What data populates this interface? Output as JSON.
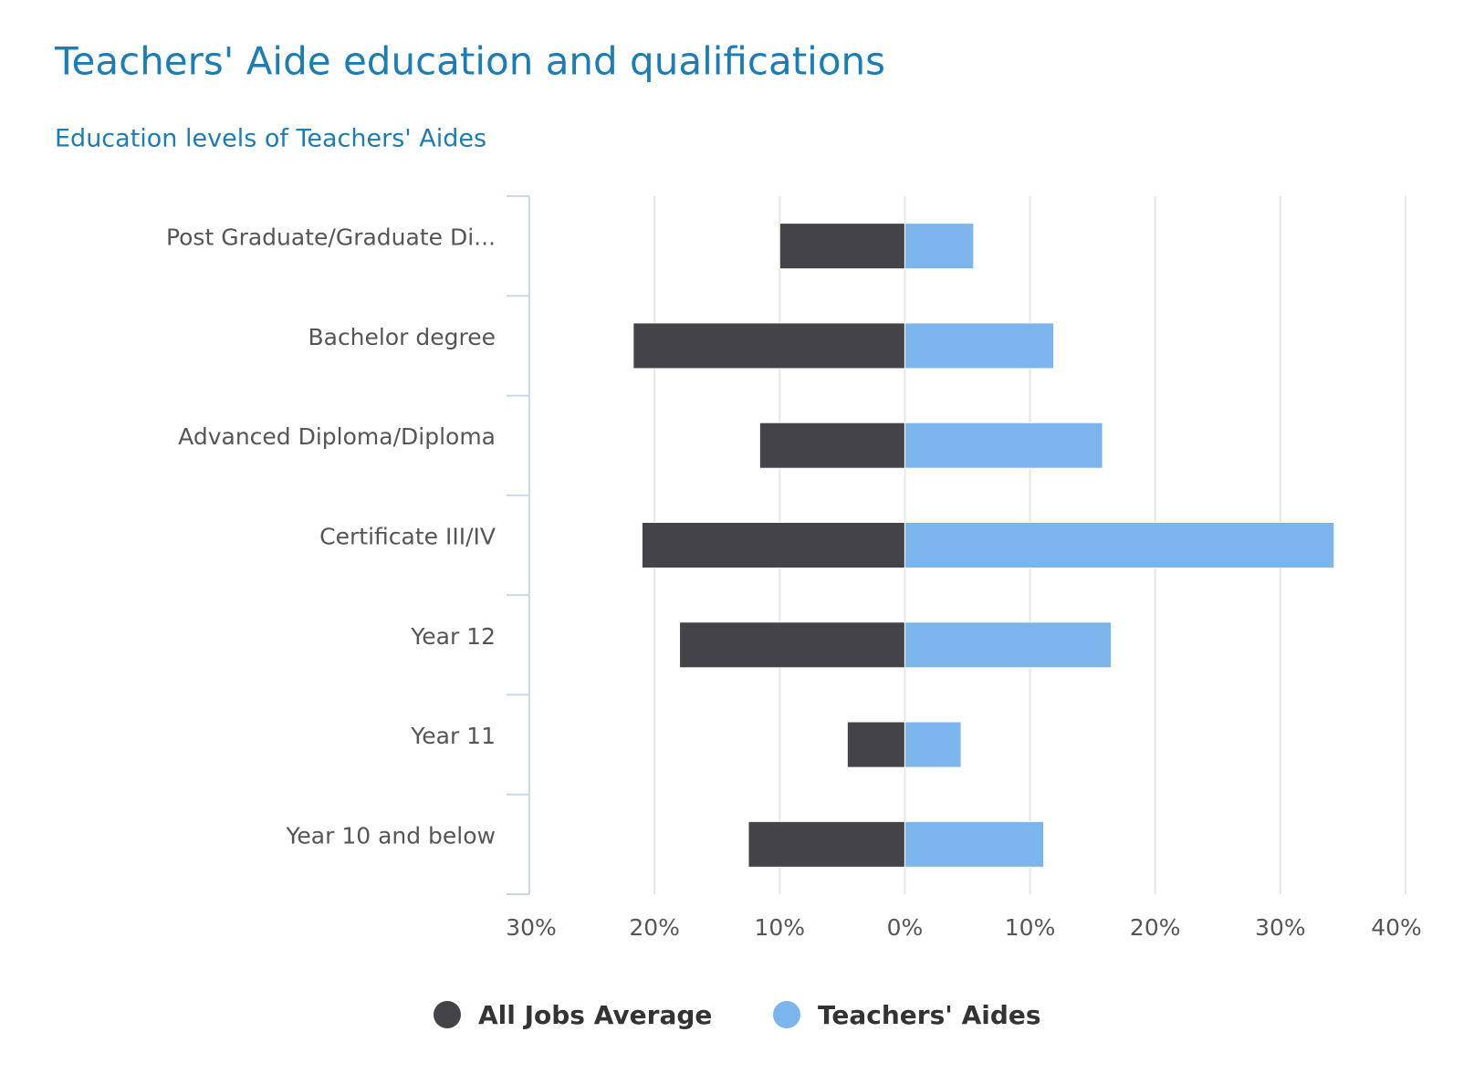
{
  "chart_data": {
    "type": "bar",
    "orientation": "horizontal",
    "title": "Teachers' Aide education and qualifications",
    "subtitle": "Education levels of Teachers' Aides",
    "categories": [
      "Post Graduate/Graduate Di...",
      "Bachelor degree",
      "Advanced Diploma/Diploma",
      "Certificate III/IV",
      "Year 12",
      "Year 11",
      "Year 10 and below"
    ],
    "series": [
      {
        "name": "All Jobs Average",
        "color": "#434348",
        "values": [
          -10.0,
          -21.7,
          -11.6,
          -21.0,
          -18.0,
          -4.6,
          -12.5
        ]
      },
      {
        "name": "Teachers' Aides",
        "color": "#7cb5ec",
        "values": [
          5.5,
          11.9,
          15.8,
          34.3,
          16.5,
          4.5,
          11.1
        ]
      }
    ],
    "xlim": [
      -30,
      40
    ],
    "xticks": [
      {
        "value": -30,
        "label": "30%"
      },
      {
        "value": -20,
        "label": "20%"
      },
      {
        "value": -10,
        "label": "10%"
      },
      {
        "value": 0,
        "label": "0%"
      },
      {
        "value": 10,
        "label": "10%"
      },
      {
        "value": 20,
        "label": "20%"
      },
      {
        "value": 30,
        "label": "30%"
      },
      {
        "value": 40,
        "label": "40%"
      }
    ],
    "grid": true,
    "legend": "bottom"
  }
}
